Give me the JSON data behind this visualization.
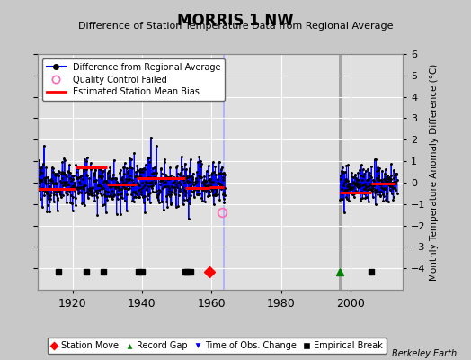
{
  "title": "MORRIS 1 NW",
  "subtitle": "Difference of Station Temperature Data from Regional Average",
  "ylabel_right": "Monthly Temperature Anomaly Difference (°C)",
  "credit": "Berkeley Earth",
  "xlim": [
    1910,
    2015
  ],
  "ylim": [
    -5,
    6
  ],
  "yticks": [
    -4,
    -3,
    -2,
    -1,
    0,
    1,
    2,
    3,
    4,
    5,
    6
  ],
  "xticks": [
    1920,
    1940,
    1960,
    1980,
    2000
  ],
  "bg_color": "#c8c8c8",
  "plot_bg_color": "#e0e0e0",
  "grid_color": "#ffffff",
  "bias_segments": [
    {
      "start": 1910.0,
      "end": 1921.0,
      "bias": -0.3
    },
    {
      "start": 1921.0,
      "end": 1930.0,
      "bias": 0.7
    },
    {
      "start": 1930.0,
      "end": 1938.5,
      "bias": -0.1
    },
    {
      "start": 1938.5,
      "end": 1952.5,
      "bias": 0.2
    },
    {
      "start": 1952.5,
      "end": 1959.5,
      "bias": -0.25
    },
    {
      "start": 1959.5,
      "end": 1963.5,
      "bias": -0.2
    },
    {
      "start": 1997.0,
      "end": 2006.0,
      "bias": -0.45
    },
    {
      "start": 2006.0,
      "end": 2013.0,
      "bias": -0.05
    }
  ],
  "data_segments": [
    {
      "start": 1910.0,
      "end": 1964.0,
      "bias": -0.05,
      "std": 0.55
    },
    {
      "start": 1997.0,
      "end": 2013.5,
      "bias": -0.1,
      "std": 0.45
    }
  ],
  "vertical_lines": [
    {
      "x": 1963.5,
      "color": "#aaaaff",
      "lw": 1.2
    },
    {
      "x": 1997.0,
      "color": "#999999",
      "lw": 1.2
    },
    {
      "x": 1997.5,
      "color": "#999999",
      "lw": 1.2
    }
  ],
  "station_moves": [
    1959.5
  ],
  "record_gaps": [
    1997.0
  ],
  "time_obs_changes": [],
  "empirical_breaks": [
    1916.0,
    1924.0,
    1929.0,
    1939.0,
    1940.0,
    1952.5,
    1953.0,
    1954.0,
    2006.0
  ],
  "qc_failed_x": 1963.0,
  "qc_failed_y": -1.4,
  "seed": 12345
}
